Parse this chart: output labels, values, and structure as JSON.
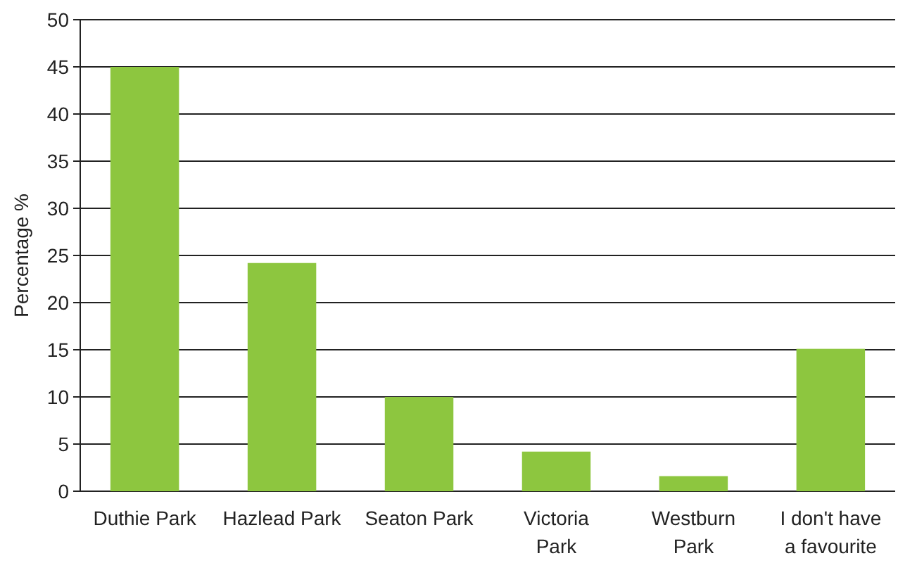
{
  "chart_data": {
    "type": "bar",
    "ylabel": "Percentage %",
    "categories": [
      "Duthie Park",
      "Hazlead Park",
      "Seaton Park",
      "Victoria Park",
      "Westburn Park",
      "I don't have a favourite"
    ],
    "values": [
      45,
      24.2,
      10,
      4.2,
      1.6,
      15.1
    ],
    "color": "#8dc63f",
    "ylim": [
      0,
      50
    ],
    "yticks": [
      0,
      5,
      10,
      15,
      20,
      25,
      30,
      35,
      40,
      45,
      50
    ],
    "grid": "y"
  }
}
